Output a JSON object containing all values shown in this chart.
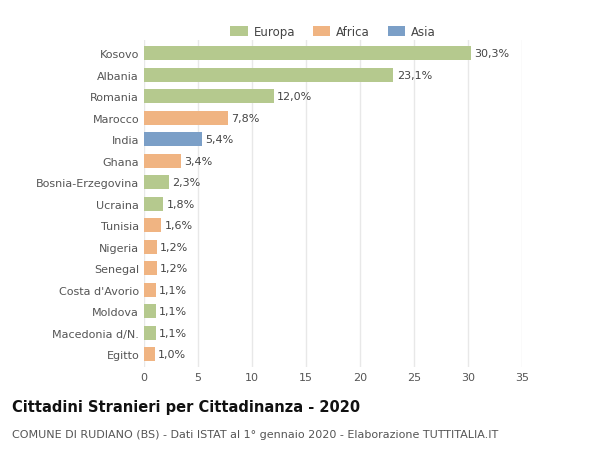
{
  "categories": [
    "Kosovo",
    "Albania",
    "Romania",
    "Marocco",
    "India",
    "Ghana",
    "Bosnia-Erzegovina",
    "Ucraina",
    "Tunisia",
    "Nigeria",
    "Senegal",
    "Costa d'Avorio",
    "Moldova",
    "Macedonia d/N.",
    "Egitto"
  ],
  "values": [
    30.3,
    23.1,
    12.0,
    7.8,
    5.4,
    3.4,
    2.3,
    1.8,
    1.6,
    1.2,
    1.2,
    1.1,
    1.1,
    1.1,
    1.0
  ],
  "labels": [
    "30,3%",
    "23,1%",
    "12,0%",
    "7,8%",
    "5,4%",
    "3,4%",
    "2,3%",
    "1,8%",
    "1,6%",
    "1,2%",
    "1,2%",
    "1,1%",
    "1,1%",
    "1,1%",
    "1,0%"
  ],
  "continents": [
    "Europa",
    "Europa",
    "Europa",
    "Africa",
    "Asia",
    "Africa",
    "Europa",
    "Europa",
    "Africa",
    "Africa",
    "Africa",
    "Africa",
    "Europa",
    "Europa",
    "Africa"
  ],
  "colors": {
    "Europa": "#b5c98e",
    "Africa": "#f0b482",
    "Asia": "#7b9fc7"
  },
  "xlim": [
    0,
    35
  ],
  "xticks": [
    0,
    5,
    10,
    15,
    20,
    25,
    30,
    35
  ],
  "title": "Cittadini Stranieri per Cittadinanza - 2020",
  "subtitle": "COMUNE DI RUDIANO (BS) - Dati ISTAT al 1° gennaio 2020 - Elaborazione TUTTITALIA.IT",
  "background_color": "#ffffff",
  "bar_height": 0.65,
  "grid_color": "#e8e8e8",
  "title_fontsize": 10.5,
  "subtitle_fontsize": 8.0,
  "label_fontsize": 8.0,
  "tick_fontsize": 8.0,
  "legend_fontsize": 8.5
}
